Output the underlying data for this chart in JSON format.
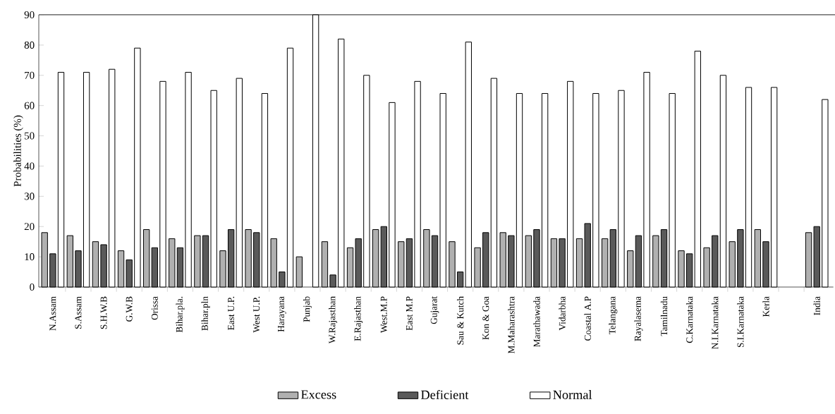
{
  "chart_data": {
    "type": "bar",
    "ylabel": "Probabilities (%)",
    "categories": [
      "N.Assam",
      "S.Assam",
      "S.H.W.B",
      "G.W.B",
      "Orissa",
      "Bihar.pla.",
      "Bihar.pln",
      "East U.P.",
      "West U.P.",
      "Harayana",
      "Punjab",
      "W.Rajasthan",
      "E.Rajasthan",
      "West.M.P",
      "East M.P",
      "Gujarat",
      "Sau & Kutch",
      "Kon & Goa",
      "M.Maharashtra",
      "Marathawada",
      "Vidarbha",
      "Coastal A.P",
      "Telangana",
      "Rayalasema",
      "Tamilnadu",
      "C.Karnataka",
      "N.I.Karnataka",
      "S.I.Karnataka",
      "Kerla",
      null,
      "India"
    ],
    "series": [
      {
        "name": "Excess",
        "color": "#b0b0b0",
        "values": [
          18,
          17,
          15,
          12,
          19,
          16,
          17,
          12,
          19,
          16,
          10,
          15,
          13,
          19,
          15,
          19,
          15,
          13,
          18,
          17,
          16,
          16,
          16,
          12,
          17,
          12,
          13,
          15,
          19,
          null,
          18
        ]
      },
      {
        "name": "Deficient",
        "color": "#5a5a5a",
        "values": [
          11,
          12,
          14,
          9,
          13,
          13,
          17,
          19,
          18,
          5,
          null,
          4,
          16,
          20,
          16,
          17,
          5,
          18,
          17,
          19,
          16,
          21,
          19,
          17,
          19,
          11,
          17,
          19,
          15,
          null,
          20
        ]
      },
      {
        "name": "Normal",
        "color": "#ffffff",
        "values": [
          71,
          71,
          72,
          79,
          68,
          71,
          65,
          69,
          64,
          79,
          90,
          82,
          70,
          61,
          68,
          64,
          81,
          69,
          64,
          64,
          68,
          64,
          65,
          71,
          64,
          78,
          70,
          66,
          66,
          null,
          62
        ]
      }
    ],
    "ylim": [
      0,
      90
    ],
    "yticks": [
      0,
      10,
      20,
      30,
      40,
      50,
      60,
      70,
      80,
      90
    ],
    "grid": false,
    "legend": "bottom"
  }
}
